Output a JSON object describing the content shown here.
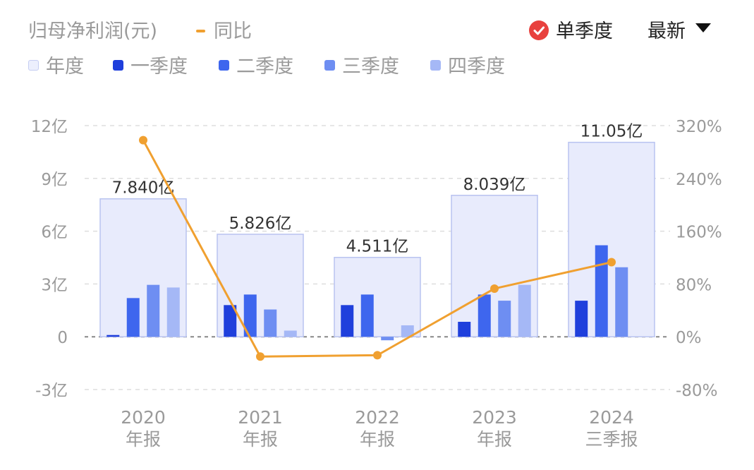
{
  "header": {
    "title": "归母净利润(元)",
    "yoy_label": "同比",
    "toggle_label": "单季度",
    "period_label": "最新"
  },
  "legend": [
    {
      "label": "年度",
      "color": "#eceffd"
    },
    {
      "label": "一季度",
      "color": "#1f3fdc"
    },
    {
      "label": "二季度",
      "color": "#3e66ee"
    },
    {
      "label": "三季度",
      "color": "#6e8ef2"
    },
    {
      "label": "四季度",
      "color": "#a5b8f6"
    }
  ],
  "colors": {
    "annual_fill": "#e8ebfc",
    "annual_stroke": "#b9c3f0",
    "line": "#f0a030",
    "grid": "#dddddd",
    "zero_line": "#888888",
    "axis_text": "#9a9a9a",
    "label_text": "#333333"
  },
  "chart_data": {
    "type": "bar",
    "categories": [
      "2020 年报",
      "2021 年报",
      "2022 年报",
      "2023 年报",
      "2024 三季报"
    ],
    "category_lines": [
      [
        "2020",
        "年报"
      ],
      [
        "2021",
        "年报"
      ],
      [
        "2022",
        "年报"
      ],
      [
        "2023",
        "年报"
      ],
      [
        "2024",
        "三季报"
      ]
    ],
    "annual": {
      "name": "年度",
      "values": [
        7.84,
        5.826,
        4.511,
        8.039,
        11.05
      ],
      "labels": [
        "7.840亿",
        "5.826亿",
        "4.511亿",
        "8.039亿",
        "11.05亿"
      ]
    },
    "series": [
      {
        "name": "一季度",
        "values": [
          0.1,
          1.8,
          1.8,
          0.85,
          2.05
        ]
      },
      {
        "name": "二季度",
        "values": [
          2.2,
          2.4,
          2.4,
          2.4,
          5.2
        ]
      },
      {
        "name": "三季度",
        "values": [
          2.95,
          1.55,
          -0.2,
          2.05,
          3.95
        ]
      },
      {
        "name": "四季度",
        "values": [
          2.8,
          0.35,
          0.65,
          2.95,
          null
        ]
      }
    ],
    "yoy": {
      "name": "同比",
      "values": [
        298,
        -30,
        -28,
        73,
        113
      ],
      "unit": "%"
    },
    "ylim": [
      -3,
      12
    ],
    "y_ticks": [
      12,
      9,
      6,
      3,
      0,
      -3
    ],
    "y_tick_labels": [
      "12亿",
      "9亿",
      "6亿",
      "3亿",
      "0",
      "-3亿"
    ],
    "y2lim": [
      -80,
      320
    ],
    "y2_ticks": [
      320,
      240,
      160,
      80,
      0,
      -80
    ],
    "y2_tick_labels": [
      "320%",
      "240%",
      "160%",
      "80%",
      "0%",
      "-80%"
    ],
    "grid": true
  }
}
